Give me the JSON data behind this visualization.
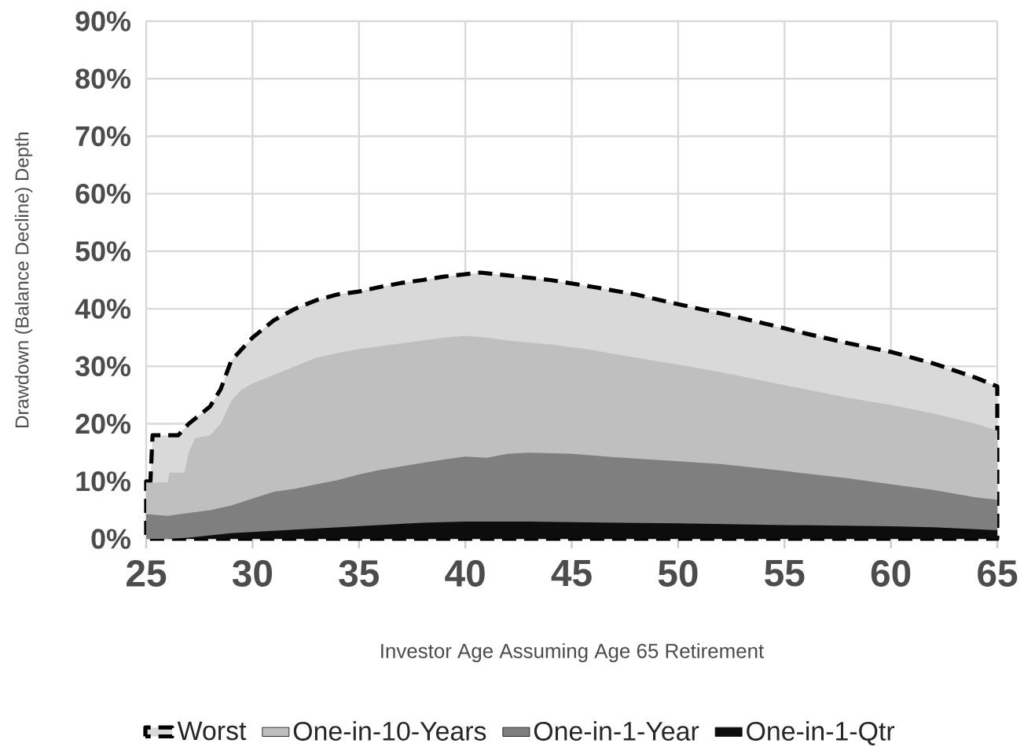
{
  "chart_data": {
    "type": "area",
    "xlabel": "Investor Age Assuming Age 65 Retirement",
    "ylabel": "Drawdown (Balance Decline) Depth",
    "xlim": [
      25,
      65
    ],
    "ylim": [
      0,
      90
    ],
    "xticks": [
      25,
      30,
      35,
      40,
      45,
      50,
      55,
      60,
      65
    ],
    "yticks": [
      {
        "value": 0,
        "label": "0%"
      },
      {
        "value": 10,
        "label": "10%"
      },
      {
        "value": 20,
        "label": "20%"
      },
      {
        "value": 30,
        "label": "30%"
      },
      {
        "value": 40,
        "label": "40%"
      },
      {
        "value": 50,
        "label": "50%"
      },
      {
        "value": 60,
        "label": "60%"
      },
      {
        "value": 70,
        "label": "70%"
      },
      {
        "value": 80,
        "label": "80%"
      },
      {
        "value": 90,
        "label": "90%"
      }
    ],
    "grid": true,
    "legend": "bottom",
    "series": [
      {
        "name": "Worst",
        "color": "#d9d9d9",
        "line_style": "dashed",
        "x": [
          25,
          25.2,
          25.3,
          26.5,
          27,
          28,
          28.5,
          29,
          30,
          31,
          32,
          33,
          34,
          35,
          36,
          37,
          38,
          39,
          40,
          40.7,
          42,
          44,
          46,
          48,
          50,
          52,
          54,
          56,
          58,
          60,
          62,
          64,
          65
        ],
        "values": [
          10,
          10,
          18,
          18,
          20,
          23,
          26,
          31,
          35,
          38,
          40,
          41.5,
          42.5,
          43,
          43.8,
          44.5,
          45,
          45.6,
          46,
          46.3,
          45.8,
          45,
          43.8,
          42.5,
          40.8,
          39.2,
          37.5,
          35.7,
          34,
          32.5,
          30.5,
          28,
          26.5
        ]
      },
      {
        "name": "One-in-10-Years",
        "color": "#bfbfbf",
        "x": [
          25,
          26,
          26.1,
          26.8,
          27,
          27.3,
          28,
          28.5,
          29,
          29.5,
          30,
          31,
          32,
          33,
          34,
          35,
          36,
          37,
          38,
          39,
          40,
          41,
          42,
          44,
          46,
          48,
          50,
          52,
          54,
          56,
          58,
          60,
          62,
          64,
          65
        ],
        "values": [
          9.8,
          9.8,
          11.5,
          11.5,
          15,
          17.5,
          18,
          20,
          24,
          26,
          27,
          28.5,
          30,
          31.5,
          32.3,
          33,
          33.5,
          34,
          34.5,
          35,
          35.3,
          35,
          34.5,
          33.8,
          32.8,
          31.5,
          30.3,
          29,
          27.5,
          26,
          24.5,
          23.3,
          21.8,
          20,
          18.8
        ]
      },
      {
        "name": "One-in-1-Year",
        "color": "#7f7f7f",
        "x": [
          25,
          26,
          27,
          28,
          29,
          30,
          31,
          32,
          33,
          34,
          35,
          36,
          37,
          38,
          39,
          40,
          41,
          42,
          43,
          45,
          47,
          50,
          52,
          55,
          58,
          60,
          62,
          64,
          65
        ],
        "values": [
          4.3,
          4,
          4.5,
          5,
          5.8,
          7,
          8.2,
          8.7,
          9.5,
          10.2,
          11.2,
          12,
          12.6,
          13.2,
          13.8,
          14.3,
          14.1,
          14.8,
          15,
          14.8,
          14.2,
          13.5,
          13,
          11.8,
          10.5,
          9.5,
          8.5,
          7.2,
          6.8
        ]
      },
      {
        "name": "One-in-1-Qtr",
        "color": "#0d0d0d",
        "x": [
          25,
          26,
          27,
          28,
          29,
          30,
          32,
          35,
          38,
          40,
          43,
          45,
          50,
          55,
          60,
          62,
          65
        ],
        "values": [
          0,
          0,
          0.2,
          0.6,
          1,
          1.2,
          1.6,
          2.2,
          2.8,
          3,
          3,
          2.9,
          2.7,
          2.4,
          2.2,
          2,
          1.5
        ]
      }
    ]
  }
}
